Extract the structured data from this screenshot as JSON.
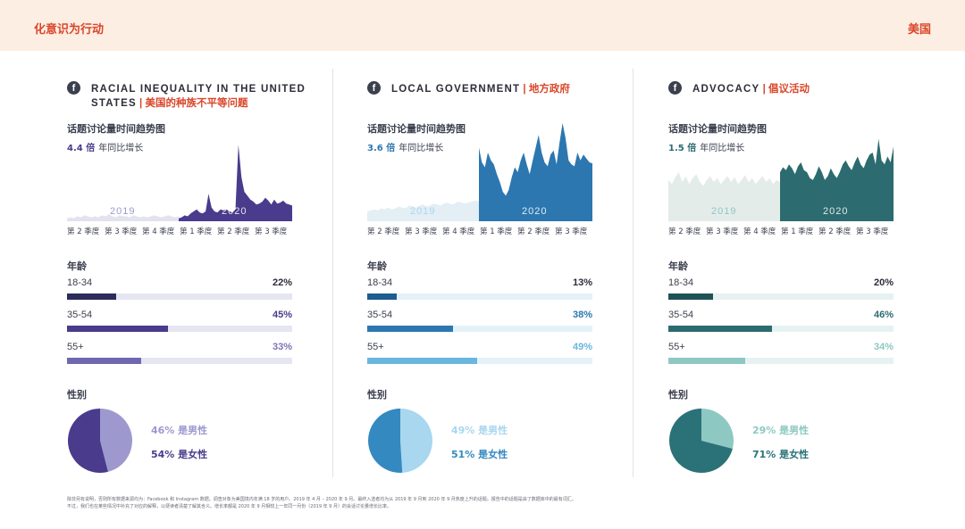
{
  "header": {
    "title": "化意识为行动",
    "region": "美国"
  },
  "panels": [
    {
      "title_en": "RACIAL INEQUALITY IN THE UNITED STATES",
      "title_zh": "美国的种族不平等问题",
      "trend_label": "话题讨论量时间趋势图",
      "growth_value": "4.4 倍",
      "growth_text": "年同比增长",
      "year_prev": "2019",
      "year_curr": "2020",
      "quarters": [
        "第 2 季度",
        "第 3 季度",
        "第 4 季度",
        "第 1 季度",
        "第 2 季度",
        "第 3 季度"
      ],
      "age_title": "年龄",
      "ages": [
        {
          "label": "18-34",
          "pct": "22%",
          "value": 22
        },
        {
          "label": "35-54",
          "pct": "45%",
          "value": 45
        },
        {
          "label": "55+",
          "pct": "33%",
          "value": 33
        }
      ],
      "gender_title": "性别",
      "male": "46% 是男性",
      "female": "54% 是女性",
      "male_share": 46,
      "female_share": 54,
      "colors": {
        "dark": "#4a3b8c",
        "mid": "#7067b1",
        "light": "#9d99cf",
        "track": "#e6e6f2",
        "bg": "#e3e2ef",
        "pct1": "#2d2d3a",
        "pct2": "#4a3b8c",
        "pct3": "#7b74b8"
      },
      "trend_2019": [
        3,
        4,
        3,
        5,
        4,
        6,
        5,
        4,
        5,
        4,
        6,
        5,
        7,
        5,
        4,
        6,
        5,
        5,
        4,
        6,
        5,
        4,
        5,
        4,
        5,
        6,
        5,
        4,
        5,
        6,
        5,
        4,
        5
      ],
      "trend_2020": [
        3,
        4,
        6,
        5,
        8,
        10,
        12,
        9,
        8,
        10,
        28,
        14,
        10,
        9,
        12,
        11,
        12,
        10,
        9,
        12,
        78,
        45,
        30,
        26,
        22,
        20,
        17,
        18,
        20,
        24,
        21,
        17,
        22,
        18,
        19,
        21,
        18,
        17,
        16
      ]
    },
    {
      "title_en": "LOCAL GOVERNMENT",
      "title_zh": "地方政府",
      "trend_label": "话题讨论量时间趋势图",
      "growth_value": "3.6 倍",
      "growth_text": "年同比增长",
      "year_prev": "2019",
      "year_curr": "2020",
      "quarters": [
        "第 2 季度",
        "第 3 季度",
        "第 4 季度",
        "第 1 季度",
        "第 2 季度",
        "第 3 季度"
      ],
      "age_title": "年龄",
      "ages": [
        {
          "label": "18-34",
          "pct": "13%",
          "value": 13
        },
        {
          "label": "35-54",
          "pct": "38%",
          "value": 38
        },
        {
          "label": "55+",
          "pct": "49%",
          "value": 49
        }
      ],
      "gender_title": "性别",
      "male": "49% 是男性",
      "female": "51% 是女性",
      "male_share": 49,
      "female_share": 51,
      "colors": {
        "dark": "#2c77b0",
        "mid": "#3d8fc7",
        "light": "#a8d7ef",
        "track": "#e5f1f8",
        "bg": "#e3eef5",
        "pct1": "#2d2d3a",
        "pct2": "#2c77b0",
        "pct3": "#69b6de"
      },
      "trend_2019": [
        10,
        11,
        12,
        11,
        13,
        12,
        14,
        12,
        13,
        15,
        14,
        13,
        16,
        15,
        14,
        16,
        17,
        15,
        16,
        18,
        17,
        16,
        18,
        19,
        17,
        18,
        20,
        19,
        18,
        19,
        20,
        21,
        20
      ],
      "trend_2020": [
        75,
        60,
        55,
        70,
        62,
        58,
        48,
        40,
        30,
        26,
        32,
        45,
        55,
        50,
        62,
        70,
        58,
        48,
        62,
        75,
        88,
        70,
        60,
        56,
        68,
        72,
        58,
        80,
        100,
        85,
        62,
        58,
        56,
        70,
        62,
        68,
        64,
        60,
        59
      ]
    },
    {
      "title_en": "ADVOCACY",
      "title_zh": "倡议活动",
      "trend_label": "话题讨论量时间趋势图",
      "growth_value": "1.5 倍",
      "growth_text": "年同比增长",
      "year_prev": "2019",
      "year_curr": "2020",
      "quarters": [
        "第 2 季度",
        "第 3 季度",
        "第 4 季度",
        "第 1 季度",
        "第 2 季度",
        "第 3 季度"
      ],
      "age_title": "年龄",
      "ages": [
        {
          "label": "18-34",
          "pct": "20%",
          "value": 20
        },
        {
          "label": "35-54",
          "pct": "46%",
          "value": 46
        },
        {
          "label": "55+",
          "pct": "34%",
          "value": 34
        }
      ],
      "gender_title": "性别",
      "male": "29% 是男性",
      "female": "71% 是女性",
      "male_share": 29,
      "female_share": 71,
      "colors": {
        "dark": "#2c6b70",
        "mid": "#2f7a7e",
        "light": "#8ec8c2",
        "track": "#e6f2f1",
        "bg": "#e4ecea",
        "pct1": "#2d2d3a",
        "pct2": "#2c6b70",
        "pct3": "#8ec8c2"
      },
      "trend_2019": [
        42,
        38,
        45,
        50,
        40,
        46,
        38,
        44,
        48,
        40,
        36,
        42,
        46,
        40,
        44,
        38,
        42,
        46,
        40,
        45,
        38,
        42,
        47,
        40,
        44,
        38,
        42,
        46,
        40,
        44,
        38,
        42,
        40
      ],
      "trend_2020": [
        50,
        55,
        52,
        58,
        54,
        48,
        56,
        60,
        52,
        50,
        44,
        42,
        48,
        56,
        50,
        42,
        46,
        54,
        48,
        44,
        50,
        58,
        62,
        56,
        52,
        60,
        66,
        58,
        54,
        62,
        68,
        70,
        58,
        84,
        62,
        58,
        66,
        60,
        76
      ]
    }
  ],
  "footnote_line1": "除非另有说明，否则所有数据来源均为：Facebook 和 Instagram 数据。调查对象为美国境内年满 18 岁的用户。2019 年 4 月 – 2020 年 9 月。最终入选者均为从 2019 年 9 月到 2020 年 9 月热度上升的话题。报告中的话题是由了数据库中的最有词汇。",
  "footnote_line2": "不过，我们也在某些情况中补充了对应的解释，以便读者清楚了解其含义。增长率都是 2020 年 9 月相较上一年同一月份（2019 年 9 月）的会话讨论量增长比率。",
  "chart_data": [
    {
      "type": "area",
      "title": "话题讨论量时间趋势图",
      "x": [
        "第 2 季度",
        "第 3 季度",
        "第 4 季度",
        "第 1 季度",
        "第 2 季度",
        "第 3 季度"
      ],
      "series": [
        {
          "name": "2019"
        },
        {
          "name": "2020"
        }
      ]
    },
    {
      "type": "bar",
      "title": "年龄",
      "categories": [
        "18-34",
        "35-54",
        "55+"
      ],
      "series": [
        {
          "name": "RACIAL INEQUALITY IN THE UNITED STATES",
          "values": [
            22,
            45,
            33
          ]
        },
        {
          "name": "LOCAL GOVERNMENT",
          "values": [
            13,
            38,
            49
          ]
        },
        {
          "name": "ADVOCACY",
          "values": [
            20,
            46,
            34
          ]
        }
      ]
    },
    {
      "type": "pie",
      "title": "性别",
      "series": [
        {
          "name": "RACIAL INEQUALITY IN THE UNITED STATES",
          "labels": [
            "男性",
            "女性"
          ],
          "values": [
            46,
            54
          ]
        },
        {
          "name": "LOCAL GOVERNMENT",
          "labels": [
            "男性",
            "女性"
          ],
          "values": [
            49,
            51
          ]
        },
        {
          "name": "ADVOCACY",
          "labels": [
            "男性",
            "女性"
          ],
          "values": [
            29,
            71
          ]
        }
      ]
    }
  ]
}
